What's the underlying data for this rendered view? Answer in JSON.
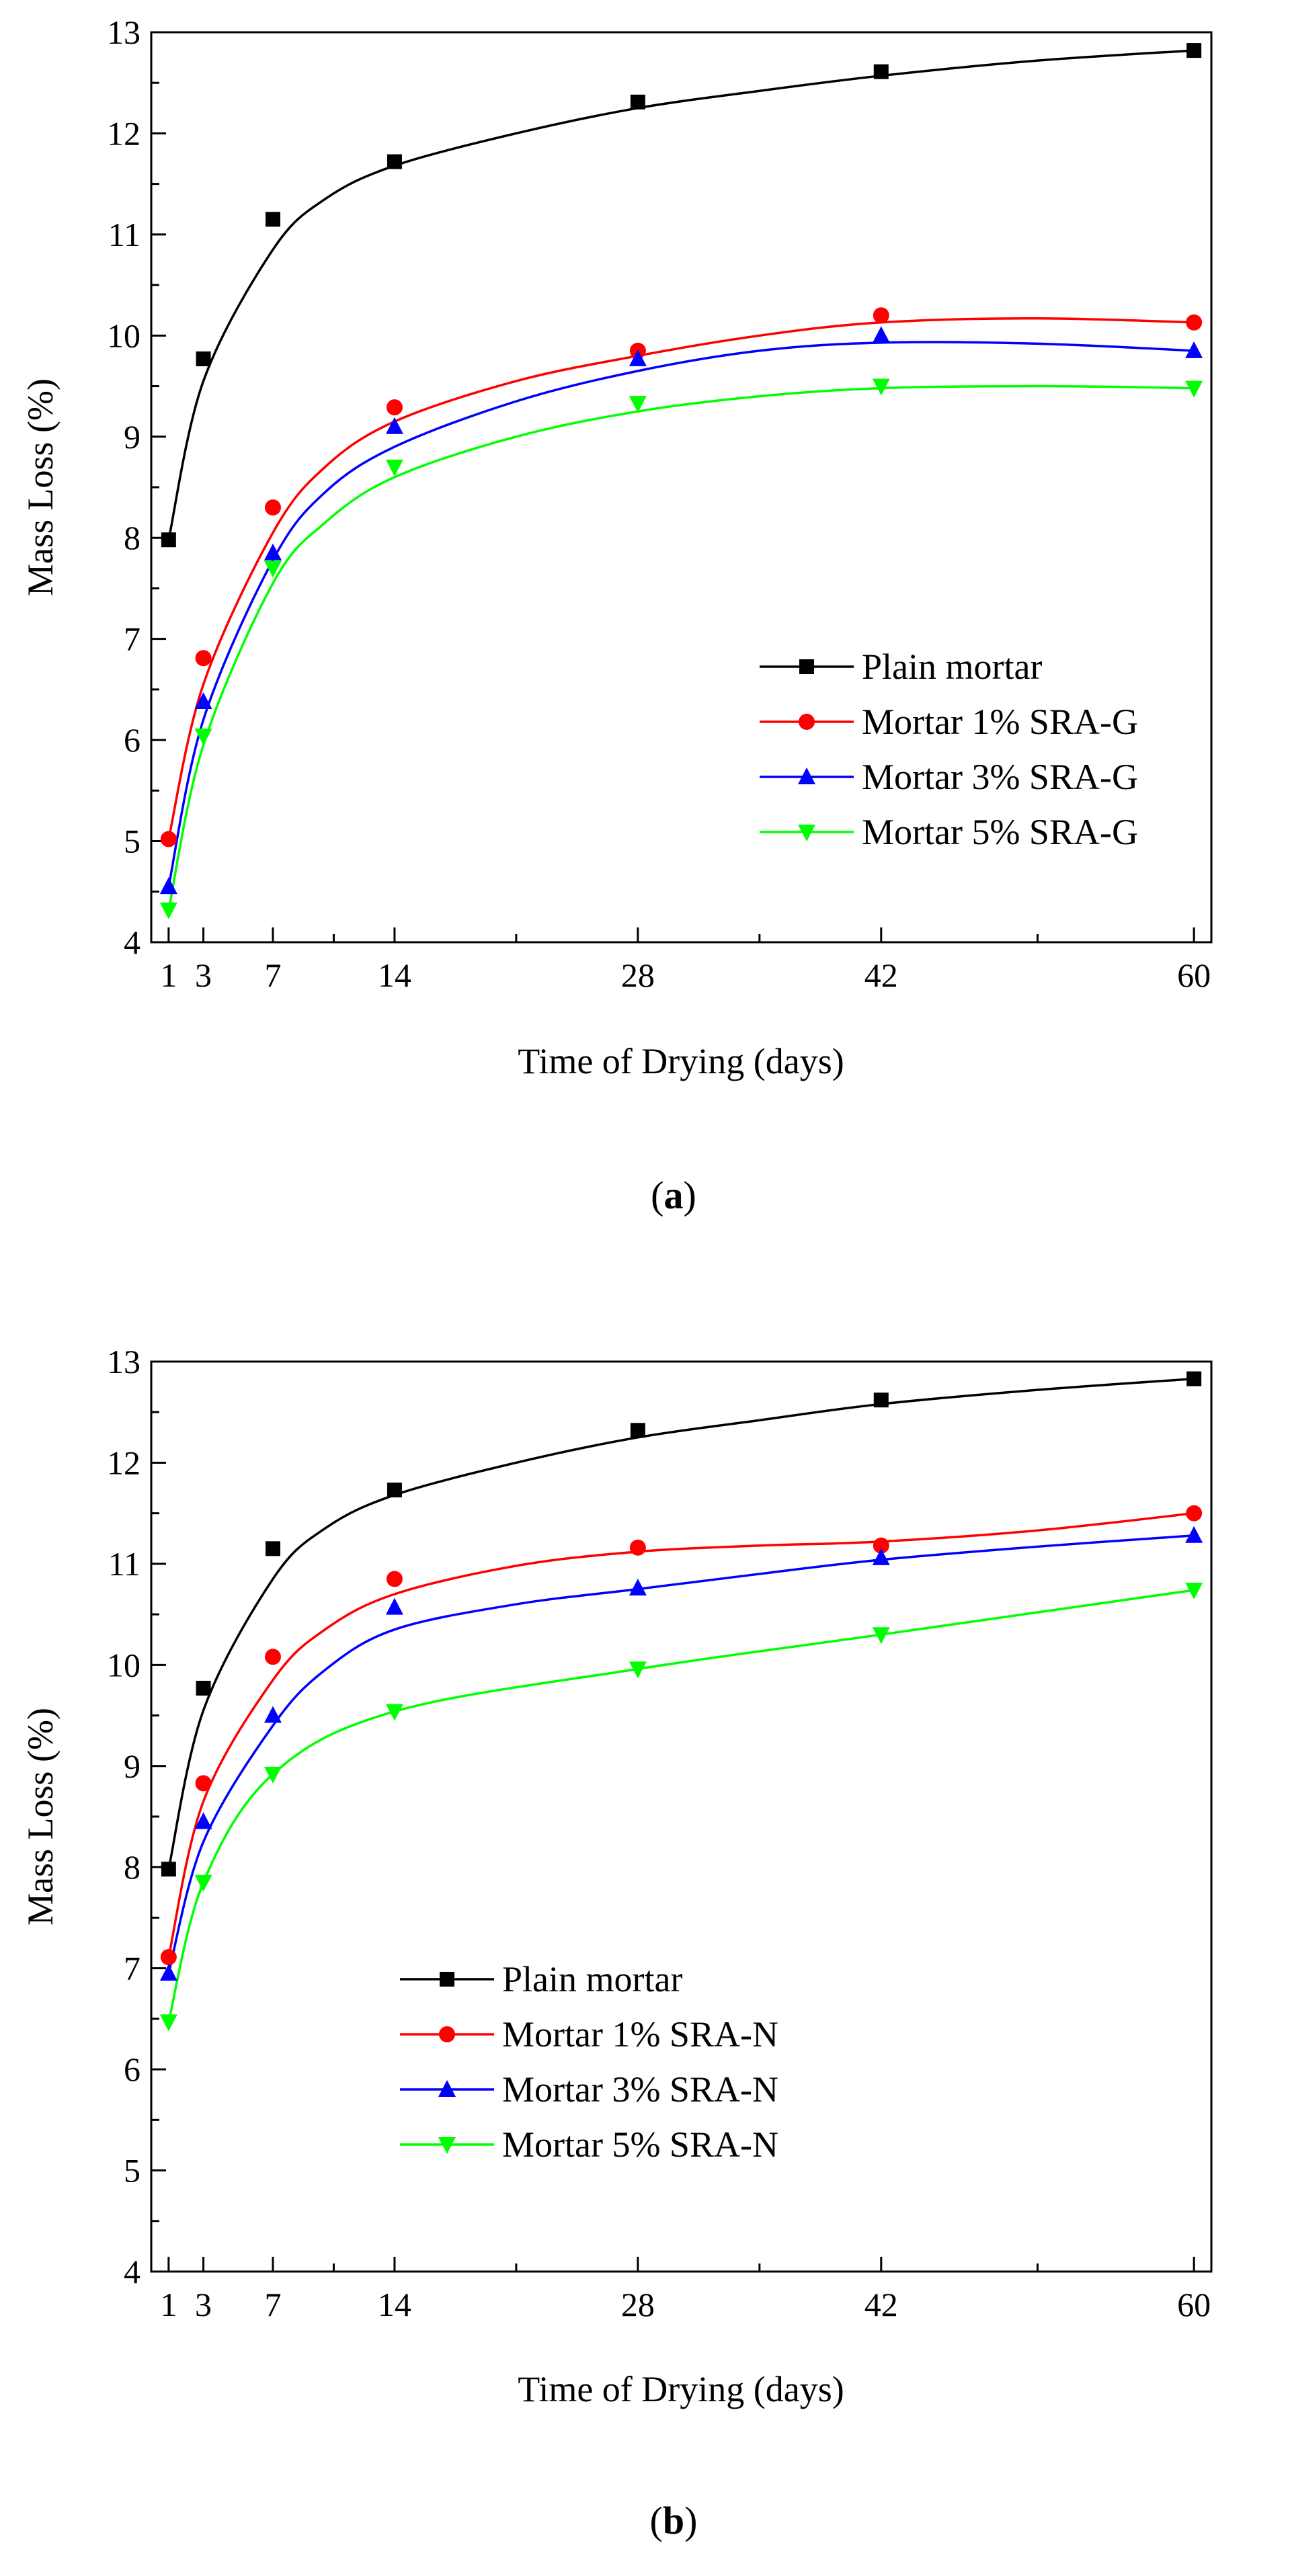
{
  "figure": {
    "panels": [
      {
        "caption_open": "(",
        "caption_letter": "a",
        "caption_close": ")"
      },
      {
        "caption_open": "(",
        "caption_letter": "b",
        "caption_close": ")"
      }
    ]
  },
  "chart_data": [
    {
      "type": "scatter",
      "title": "",
      "xlabel": "Time of Drying (days)",
      "ylabel": "Mass Loss (%)",
      "xlim": [
        0,
        61
      ],
      "ylim": [
        4,
        13
      ],
      "xticks": [
        1,
        3,
        7,
        14,
        28,
        42,
        60
      ],
      "xtick_labels": [
        "1",
        "3",
        "7",
        "14",
        "28",
        "42",
        "60"
      ],
      "xminor_ticks": [
        10.5,
        21,
        35,
        51
      ],
      "yticks": [
        4,
        5,
        6,
        7,
        8,
        9,
        10,
        11,
        12,
        13
      ],
      "ytick_labels": [
        "4",
        "5",
        "6",
        "7",
        "8",
        "9",
        "10",
        "11",
        "12",
        "13"
      ],
      "legend_position": "lower-right",
      "series": [
        {
          "name": "Plain mortar",
          "color": "#000000",
          "marker": "square",
          "x": [
            1,
            3,
            7,
            14,
            28,
            42,
            60
          ],
          "values": [
            7.98,
            9.77,
            11.15,
            11.72,
            12.31,
            12.61,
            12.82
          ],
          "fit": [
            [
              1,
              7.98
            ],
            [
              3,
              9.55
            ],
            [
              7,
              10.85
            ],
            [
              10,
              11.35
            ],
            [
              14,
              11.68
            ],
            [
              21,
              12.0
            ],
            [
              28,
              12.25
            ],
            [
              35,
              12.42
            ],
            [
              42,
              12.57
            ],
            [
              51,
              12.72
            ],
            [
              60,
              12.82
            ]
          ]
        },
        {
          "name": "Mortar 1% SRA-G",
          "color": "#ff0000",
          "marker": "circle",
          "x": [
            1,
            3,
            7,
            14,
            28,
            42,
            60
          ],
          "values": [
            5.02,
            6.81,
            8.3,
            9.29,
            9.85,
            10.2,
            10.13
          ],
          "fit": [
            [
              1,
              5.02
            ],
            [
              3,
              6.55
            ],
            [
              7,
              8.05
            ],
            [
              10,
              8.7
            ],
            [
              14,
              9.15
            ],
            [
              21,
              9.55
            ],
            [
              28,
              9.8
            ],
            [
              35,
              10.0
            ],
            [
              42,
              10.13
            ],
            [
              51,
              10.17
            ],
            [
              60,
              10.13
            ]
          ]
        },
        {
          "name": "Mortar 3% SRA-G",
          "color": "#0000ff",
          "marker": "triangle-up",
          "x": [
            1,
            3,
            7,
            14,
            28,
            42,
            60
          ],
          "values": [
            4.55,
            6.38,
            7.85,
            9.1,
            9.77,
            10.0,
            9.85
          ],
          "fit": [
            [
              1,
              4.55
            ],
            [
              3,
              6.2
            ],
            [
              7,
              7.78
            ],
            [
              10,
              8.45
            ],
            [
              14,
              8.9
            ],
            [
              21,
              9.35
            ],
            [
              28,
              9.65
            ],
            [
              35,
              9.85
            ],
            [
              42,
              9.93
            ],
            [
              51,
              9.92
            ],
            [
              60,
              9.85
            ]
          ]
        },
        {
          "name": "Mortar 5% SRA-G",
          "color": "#00ff00",
          "marker": "triangle-down",
          "x": [
            1,
            3,
            7,
            14,
            28,
            42,
            60
          ],
          "values": [
            4.32,
            6.04,
            7.7,
            8.7,
            9.33,
            9.5,
            9.48
          ],
          "fit": [
            [
              1,
              4.32
            ],
            [
              3,
              5.95
            ],
            [
              7,
              7.55
            ],
            [
              10,
              8.15
            ],
            [
              14,
              8.6
            ],
            [
              21,
              9.0
            ],
            [
              28,
              9.25
            ],
            [
              35,
              9.4
            ],
            [
              42,
              9.48
            ],
            [
              51,
              9.5
            ],
            [
              60,
              9.48
            ]
          ]
        }
      ]
    },
    {
      "type": "scatter",
      "title": "",
      "xlabel": "Time of Drying (days)",
      "ylabel": "Mass Loss (%)",
      "xlim": [
        0,
        61
      ],
      "ylim": [
        4,
        13
      ],
      "xticks": [
        1,
        3,
        7,
        14,
        28,
        42,
        60
      ],
      "xtick_labels": [
        "1",
        "3",
        "7",
        "14",
        "28",
        "42",
        "60"
      ],
      "xminor_ticks": [
        10.5,
        21,
        35,
        51
      ],
      "yticks": [
        4,
        5,
        6,
        7,
        8,
        9,
        10,
        11,
        12,
        13
      ],
      "ytick_labels": [
        "4",
        "5",
        "6",
        "7",
        "8",
        "9",
        "10",
        "11",
        "12",
        "13"
      ],
      "legend_position": "lower-left",
      "series": [
        {
          "name": "Plain mortar",
          "color": "#000000",
          "marker": "square",
          "x": [
            1,
            3,
            7,
            14,
            28,
            42,
            60
          ],
          "values": [
            7.98,
            9.77,
            11.15,
            11.73,
            12.32,
            12.62,
            12.83
          ],
          "fit": [
            [
              1,
              7.98
            ],
            [
              3,
              9.55
            ],
            [
              7,
              10.85
            ],
            [
              10,
              11.35
            ],
            [
              14,
              11.68
            ],
            [
              21,
              12.0
            ],
            [
              28,
              12.25
            ],
            [
              35,
              12.42
            ],
            [
              42,
              12.58
            ],
            [
              51,
              12.72
            ],
            [
              60,
              12.83
            ]
          ]
        },
        {
          "name": "Mortar 1% SRA-N",
          "color": "#ff0000",
          "marker": "circle",
          "x": [
            1,
            3,
            7,
            14,
            28,
            42,
            60
          ],
          "values": [
            7.11,
            8.83,
            10.08,
            10.85,
            11.16,
            11.18,
            11.5
          ],
          "fit": [
            [
              1,
              7.11
            ],
            [
              3,
              8.65
            ],
            [
              7,
              9.85
            ],
            [
              10,
              10.35
            ],
            [
              14,
              10.7
            ],
            [
              21,
              10.98
            ],
            [
              28,
              11.12
            ],
            [
              35,
              11.18
            ],
            [
              42,
              11.22
            ],
            [
              51,
              11.33
            ],
            [
              60,
              11.5
            ]
          ]
        },
        {
          "name": "Mortar 3% SRA-N",
          "color": "#0000ff",
          "marker": "triangle-up",
          "x": [
            1,
            3,
            7,
            14,
            28,
            42,
            60
          ],
          "values": [
            6.95,
            8.45,
            9.5,
            10.57,
            10.76,
            11.06,
            11.28
          ],
          "fit": [
            [
              1,
              6.95
            ],
            [
              3,
              8.25
            ],
            [
              7,
              9.4
            ],
            [
              10,
              9.95
            ],
            [
              14,
              10.35
            ],
            [
              21,
              10.6
            ],
            [
              28,
              10.75
            ],
            [
              35,
              10.9
            ],
            [
              42,
              11.04
            ],
            [
              51,
              11.17
            ],
            [
              60,
              11.28
            ]
          ]
        },
        {
          "name": "Mortar 5% SRA-N",
          "color": "#00ff00",
          "marker": "triangle-down",
          "x": [
            1,
            3,
            7,
            14,
            28,
            42,
            60
          ],
          "values": [
            6.47,
            7.85,
            8.92,
            9.54,
            9.96,
            10.3,
            10.74
          ],
          "fit": [
            [
              1,
              6.47
            ],
            [
              3,
              7.85
            ],
            [
              7,
              8.92
            ],
            [
              14,
              9.54
            ],
            [
              28,
              9.96
            ],
            [
              42,
              10.3
            ],
            [
              60,
              10.74
            ]
          ]
        }
      ]
    }
  ]
}
